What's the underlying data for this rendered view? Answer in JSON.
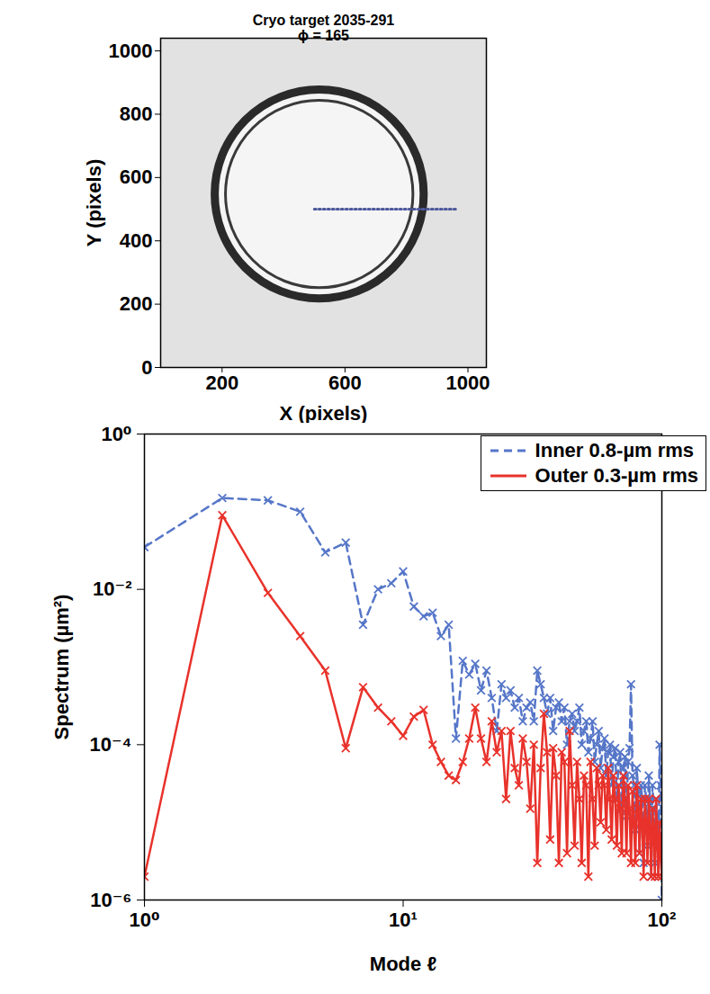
{
  "chart_data": [
    {
      "type": "image",
      "title": "Cryo target 2035-291",
      "subtitle": "ϕ = 165",
      "x_label": "X (pixels)",
      "y_label": "Y (pixels)",
      "xlim": [
        0,
        1060
      ],
      "ylim": [
        0,
        1040
      ],
      "xticks": [
        200,
        600,
        1000
      ],
      "yticks": [
        0,
        200,
        400,
        600,
        800,
        1000
      ],
      "grid": false,
      "rings": [
        {
          "cx": 516,
          "cy": 548,
          "r": 340
        },
        {
          "cx": 516,
          "cy": 548,
          "r": 305
        }
      ],
      "lineout": {
        "x": [
          500,
          960
        ],
        "y": [
          500,
          500
        ]
      }
    },
    {
      "type": "line",
      "x_label": "Mode ℓ",
      "y_label": "Spectrum (µm²)",
      "log": true,
      "grid": false,
      "legend": "upper right",
      "xlim": [
        1,
        100
      ],
      "ylim": [
        1e-06,
        1
      ],
      "xticks": [
        {
          "value": 1,
          "label": "10⁰"
        },
        {
          "value": 10,
          "label": "10¹"
        },
        {
          "value": 100,
          "label": "10²"
        }
      ],
      "yticks": [
        {
          "value": 1e-06,
          "label": "10⁻⁶"
        },
        {
          "value": 0.0001,
          "label": "10⁻⁴"
        },
        {
          "value": 0.01,
          "label": "10⁻²"
        },
        {
          "value": 1,
          "label": "10⁰"
        }
      ],
      "x": [
        1,
        2,
        3,
        4,
        5,
        6,
        7,
        8,
        9,
        10,
        11,
        12,
        13,
        14,
        15,
        16,
        17,
        18,
        19,
        20,
        21,
        22,
        23,
        24,
        25,
        26,
        27,
        28,
        29,
        30,
        31,
        32,
        33,
        34,
        35,
        36,
        37,
        38,
        39,
        40,
        41,
        42,
        43,
        44,
        45,
        46,
        47,
        48,
        49,
        50,
        51,
        52,
        53,
        54,
        55,
        56,
        57,
        58,
        59,
        60,
        61,
        62,
        63,
        64,
        65,
        66,
        67,
        68,
        69,
        70,
        71,
        72,
        73,
        74,
        75,
        76,
        77,
        78,
        79,
        80,
        81,
        82,
        83,
        84,
        85,
        86,
        87,
        88,
        89,
        90,
        91,
        92,
        93,
        94,
        95,
        96,
        97,
        98,
        99,
        100
      ],
      "series": [
        {
          "name": "Inner 0.8-µm rms",
          "color": "#5676c8",
          "line_style": "dashed",
          "marker": "x",
          "values": [
            0.035,
            0.15,
            0.14,
            0.1,
            0.03,
            0.04,
            0.0035,
            0.01,
            0.012,
            0.017,
            0.006,
            0.0045,
            0.005,
            0.0025,
            0.0035,
            0.00012,
            0.0012,
            0.0008,
            0.0011,
            0.0005,
            0.0009,
            0.0004,
            0.00015,
            0.0006,
            0.0004,
            0.0005,
            0.0003,
            0.0004,
            0.0002,
            0.0003,
            0.00035,
            0.0002,
            0.0009,
            0.0006,
            0.0004,
            0.00025,
            0.0004,
            0.00015,
            0.0003,
            0.00035,
            0.0002,
            0.0003,
            0.0001,
            0.0002,
            0.00025,
            0.00015,
            0.0002,
            0.0003,
            0.0001,
            0.00015,
            0.0002,
            8e-05,
            0.00012,
            0.0002,
            6e-05,
            0.0001,
            0.00015,
            5e-05,
            9e-05,
            0.00012,
            4e-05,
            8e-05,
            0.0001,
            3e-05,
            7e-05,
            9e-05,
            2e-05,
            6e-05,
            8e-05,
            1.5e-05,
            5e-05,
            7e-05,
            1.2e-05,
            6e-05,
            9e-05,
            0.0006,
            4e-05,
            3e-05,
            8e-06,
            5e-05,
            2.5e-05,
            4e-06,
            3e-05,
            2e-05,
            3e-06,
            3e-05,
            2e-05,
            5e-06,
            4e-05,
            2e-05,
            2e-06,
            3e-05,
            1.5e-05,
            3e-06,
            2e-05,
            1e-05,
            2e-06,
            0.0001,
            3e-05,
            1e-06
          ]
        },
        {
          "name": "Outer 0.3-µm rms",
          "color": "#e8322b",
          "line_style": "solid",
          "marker": "x",
          "values": [
            2e-06,
            0.09,
            0.009,
            0.0025,
            0.0009,
            9e-05,
            0.00055,
            0.0003,
            0.0002,
            0.00013,
            0.00023,
            0.00028,
            0.0001,
            6e-05,
            4e-05,
            3.5e-05,
            6e-05,
            0.00012,
            0.0003,
            0.00012,
            6e-05,
            0.0002,
            8e-05,
            0.00015,
            2e-05,
            0.00015,
            5e-05,
            3e-05,
            0.00012,
            6e-05,
            1.5e-05,
            0.0001,
            3e-06,
            5e-05,
            0.00025,
            8e-05,
            6e-06,
            9e-05,
            4e-05,
            3e-06,
            8e-05,
            6e-05,
            4e-06,
            0.00015,
            3e-05,
            5e-06,
            6e-05,
            2e-05,
            3e-06,
            4e-05,
            3e-05,
            2e-06,
            6e-05,
            2e-05,
            5e-06,
            5e-05,
            3e-05,
            1e-05,
            4e-05,
            3e-05,
            8e-06,
            5e-05,
            2e-05,
            6e-06,
            4e-05,
            2e-05,
            5e-06,
            3e-05,
            1.5e-05,
            4e-06,
            4e-05,
            2e-05,
            4e-06,
            3e-05,
            1.5e-05,
            3e-06,
            2.5e-05,
            1e-05,
            3e-06,
            3e-05,
            1.5e-05,
            4e-06,
            2e-05,
            1e-05,
            2e-06,
            2e-05,
            1e-05,
            3e-06,
            2e-05,
            8e-06,
            2e-06,
            1.5e-05,
            8e-06,
            2e-06,
            2e-05,
            6e-06,
            2e-06,
            1e-05,
            4e-06,
            2e-06
          ]
        }
      ]
    }
  ]
}
